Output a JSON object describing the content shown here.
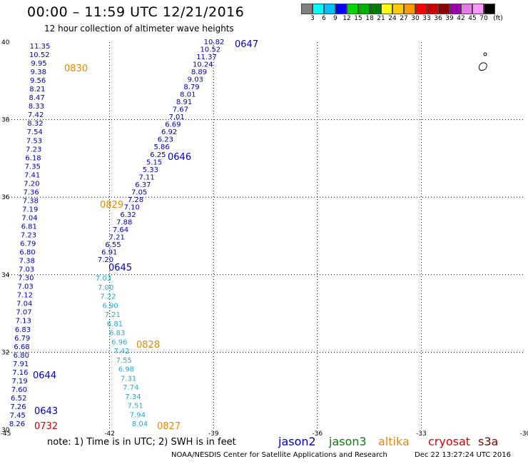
{
  "header": {
    "title": "00:00 – 11:59 UTC 12/21/2016",
    "subtitle": "12 hour collection of altimeter wave heights"
  },
  "legend": {
    "colors": [
      "#7f7f7f",
      "#00ffff",
      "#00bfff",
      "#0000ff",
      "#00d800",
      "#00b000",
      "#007a00",
      "#ffff00",
      "#ffcc00",
      "#ff9900",
      "#ff0000",
      "#cc0000",
      "#8b0000",
      "#9900aa",
      "#e47be4",
      "#ff99ff",
      "#000000"
    ],
    "labels": [
      "3",
      "6",
      "9",
      "12",
      "15",
      "18",
      "21",
      "24",
      "27",
      "30",
      "33",
      "36",
      "39",
      "42",
      "45",
      "70",
      "(ft)"
    ]
  },
  "axes": {
    "x_ticks": [
      "-45",
      "-42",
      "-39",
      "-36",
      "-33",
      "-30"
    ],
    "y_ticks": [
      "40",
      "38",
      "36",
      "34",
      "32",
      "30"
    ]
  },
  "colors": {
    "jason2": "#0000cc",
    "jason3": "#008800",
    "altika": "#ee8800",
    "cryosat": "#dd0000",
    "s3a": "#880000",
    "swh_low": "#29a8dd",
    "swh_mid": "#0000cc"
  },
  "map": {
    "tracks": [
      {
        "id": "track-0647",
        "color": "swh_mid",
        "points": [
          "10.82",
          "10.52",
          "11.37",
          "10.24",
          "8.89",
          "9.03",
          "8.79",
          "8.01",
          "8.91",
          "7.67",
          "7.01",
          "6.69",
          "6.92",
          "6.23",
          "5.86",
          "6.25",
          "5.15",
          "5.33",
          "7.11",
          "6.37",
          "7.05",
          "7.28",
          "7.10",
          "6.32",
          "7.88",
          "7.64",
          "7.21",
          "6.55",
          "6.91",
          "7.20"
        ]
      },
      {
        "id": "track-0830",
        "color": "swh_mid",
        "points": [
          "11.35",
          "10.52",
          "9.95",
          "9.38",
          "9.56",
          "8.21",
          "8.47",
          "8.33",
          "7.42",
          "8.32",
          "7.54",
          "7.53",
          "7.23",
          "6.18",
          "7.35",
          "7.41",
          "7.20",
          "7.36",
          "7.38",
          "7.19",
          "7.04",
          "6.81",
          "7.23",
          "6.79",
          "6.80",
          "7.38",
          "7.03",
          "7.30",
          "7.03",
          "7.12",
          "7.04",
          "7.07",
          "7.13",
          "6.83",
          "6.79",
          "6.68",
          "6.80",
          "7.91",
          "7.16",
          "7.19",
          "7.60",
          "6.52",
          "7.26",
          "7.45",
          "8.26"
        ]
      },
      {
        "id": "track-0828",
        "color": "swh_low",
        "points": [
          "7.03",
          "7.00",
          "7.22",
          "6.90",
          "7.21",
          "6.81",
          "6.83",
          "6.96",
          "7.42",
          "7.55",
          "6.98",
          "7.31",
          "7.74",
          "7.34",
          "7.51",
          "7.94",
          "8.04"
        ]
      }
    ],
    "pass_labels": [
      {
        "text": "0647",
        "sat": "jason2"
      },
      {
        "text": "0830",
        "sat": "altika"
      },
      {
        "text": "0646",
        "sat": "jason2"
      },
      {
        "text": "0829",
        "sat": "altika"
      },
      {
        "text": "0645",
        "sat": "jason2"
      },
      {
        "text": "0828",
        "sat": "altika"
      },
      {
        "text": "0644",
        "sat": "jason2"
      },
      {
        "text": "0643",
        "sat": "jason2"
      },
      {
        "text": "0732",
        "sat": "cryosat"
      },
      {
        "text": "0827",
        "sat": "altika"
      }
    ]
  },
  "footer": {
    "note": "note: 1) Time is in UTC; 2) SWH is in feet",
    "missions": [
      {
        "name": "jason2",
        "color": "#0000cc"
      },
      {
        "name": "jason3",
        "color": "#008800"
      },
      {
        "name": "altika",
        "color": "#ee8800"
      },
      {
        "name": "cryosat",
        "color": "#dd0000"
      },
      {
        "name": "s3a",
        "color": "#880000"
      }
    ],
    "credit": "NOAA/NESDIS Center for Satellite Applications and Research",
    "timestamp": "Dec 22 13:27:24 UTC 2016"
  }
}
